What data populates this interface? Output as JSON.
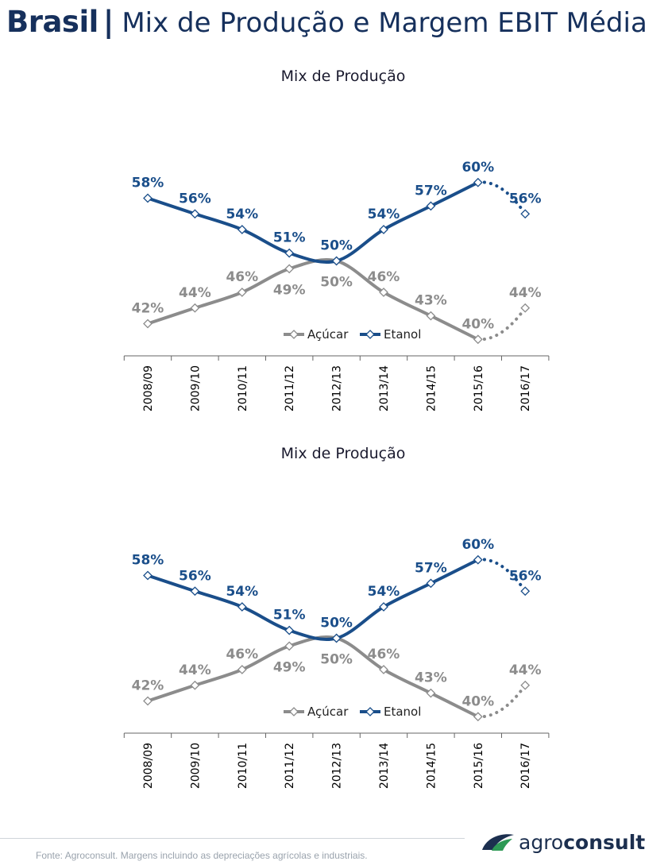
{
  "header": {
    "brand": "Brasil",
    "separator": "|",
    "title": "Mix de Produção e Margem EBIT Média"
  },
  "chart_data": [
    {
      "type": "line",
      "title": "Mix de Produção",
      "categories": [
        "2008/09",
        "2009/10",
        "2010/11",
        "2011/12",
        "2012/13",
        "2013/14",
        "2014/15",
        "2015/16",
        "2016/17"
      ],
      "ylim": [
        38,
        62
      ],
      "grid": false,
      "legend_position": "bottom-center",
      "series": [
        {
          "name": "Açúcar",
          "values": [
            42,
            44,
            46,
            49,
            50,
            46,
            43,
            40,
            44
          ],
          "color": "#8c8c8c",
          "labels": [
            "42%",
            "44%",
            "46%",
            "49%",
            "50%",
            "46%",
            "43%",
            "40%",
            "44%"
          ],
          "projected_last": true
        },
        {
          "name": "Etanol",
          "values": [
            58,
            56,
            54,
            51,
            50,
            54,
            57,
            60,
            56
          ],
          "color": "#1a4e8a",
          "labels": [
            "58%",
            "56%",
            "54%",
            "51%",
            "50%",
            "54%",
            "57%",
            "60%",
            "56%"
          ],
          "projected_last": true
        }
      ]
    },
    {
      "type": "line",
      "title": "Mix de Produção",
      "categories": [
        "2008/09",
        "2009/10",
        "2010/11",
        "2011/12",
        "2012/13",
        "2013/14",
        "2014/15",
        "2015/16",
        "2016/17"
      ],
      "ylim": [
        38,
        62
      ],
      "grid": false,
      "legend_position": "bottom-center",
      "series": [
        {
          "name": "Açúcar",
          "values": [
            42,
            44,
            46,
            49,
            50,
            46,
            43,
            40,
            44
          ],
          "color": "#8c8c8c",
          "labels": [
            "42%",
            "44%",
            "46%",
            "49%",
            "50%",
            "46%",
            "43%",
            "40%",
            "44%"
          ],
          "projected_last": true
        },
        {
          "name": "Etanol",
          "values": [
            58,
            56,
            54,
            51,
            50,
            54,
            57,
            60,
            56
          ],
          "color": "#1a4e8a",
          "labels": [
            "58%",
            "56%",
            "54%",
            "51%",
            "50%",
            "54%",
            "57%",
            "60%",
            "56%"
          ],
          "projected_last": true
        }
      ]
    }
  ],
  "footer": {
    "source": "Fonte: Agroconsult. Margens incluindo as depreciações agrícolas e industriais."
  },
  "logo": {
    "part1": "agro",
    "part2": "consult",
    "color": "#1c2f4f"
  }
}
